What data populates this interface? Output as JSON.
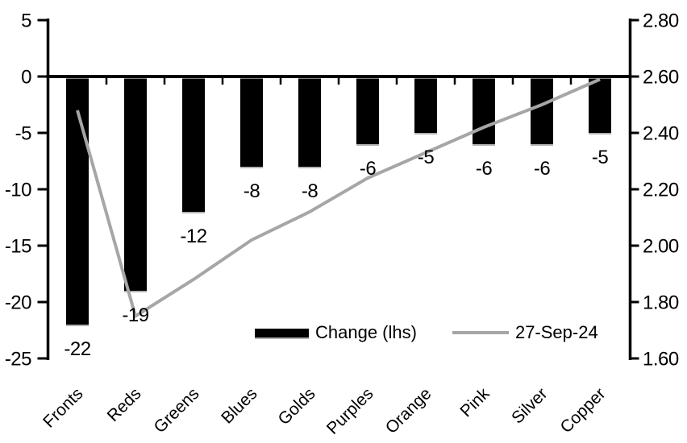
{
  "chart_data": {
    "type": "combo",
    "subtype": [
      "bar",
      "line"
    ],
    "title": "",
    "categories": [
      "Fronts",
      "Reds",
      "Greens",
      "Blues",
      "Golds",
      "Purples",
      "Orange",
      "Pink",
      "Silver",
      "Copper"
    ],
    "series": [
      {
        "name": "Change (lhs)",
        "type": "bar",
        "axis": "left",
        "color": "#000000",
        "values": [
          -22,
          -19,
          -12,
          -8,
          -8,
          -6,
          -5,
          -6,
          -6,
          -5
        ],
        "data_labels": [
          "-22",
          "-19",
          "-12",
          "-8",
          "-8",
          "-6",
          "-5",
          "-6",
          "-6",
          "-5"
        ]
      },
      {
        "name": "27-Sep-24",
        "type": "line",
        "axis": "right",
        "color": "#a6a6a6",
        "values": [
          2.48,
          1.75,
          1.88,
          2.02,
          2.12,
          2.24,
          2.33,
          2.42,
          2.5,
          2.59
        ]
      }
    ],
    "left_axis": {
      "min": -25,
      "max": 5,
      "tick_labels": [
        "5",
        "0",
        "-5",
        "-10",
        "-15",
        "-20",
        "-25"
      ]
    },
    "right_axis": {
      "min": 1.6,
      "max": 2.8,
      "tick_labels": [
        "2.80",
        "2.60",
        "2.40",
        "2.20",
        "2.00",
        "1.80",
        "1.60"
      ]
    },
    "legend": {
      "position": "bottom-inside",
      "items": [
        {
          "label": "Change (lhs)",
          "swatch": "bar",
          "color": "#000000"
        },
        {
          "label": "27-Sep-24",
          "swatch": "line",
          "color": "#a6a6a6"
        }
      ]
    },
    "grid": false,
    "category_label_angle": 45,
    "colors": {
      "bar": "#000000",
      "line": "#a6a6a6",
      "axis": "#000000",
      "text": "#000000",
      "background": "#ffffff"
    }
  }
}
